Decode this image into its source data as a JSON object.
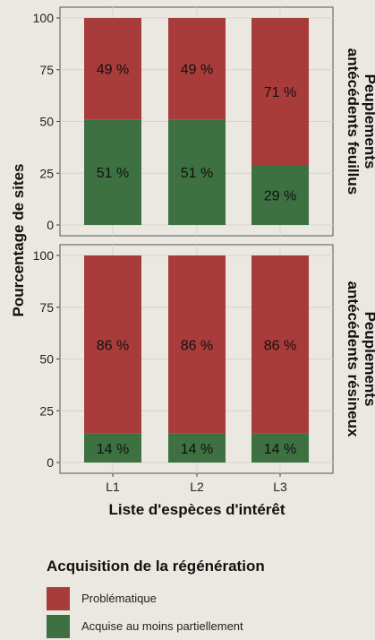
{
  "chart_data": {
    "type": "bar",
    "stacked": true,
    "orientation": "vertical",
    "categories": [
      "L1",
      "L2",
      "L3"
    ],
    "xlabel": "Liste d'espèces d'intérêt",
    "ylabel": "Pourcentage de sites",
    "ylim": [
      0,
      100
    ],
    "yticks": [
      0,
      25,
      50,
      75,
      100
    ],
    "grid": true,
    "legend_placement": "bottom",
    "value_label_suffix": " %",
    "facets": [
      {
        "label": "Peuplements antécédents feuillus",
        "label_lines": [
          "Peuplements",
          "antécédents feuillus"
        ],
        "series": [
          {
            "name": "Acquise au moins partiellement",
            "values": [
              51,
              51,
              29
            ]
          },
          {
            "name": "Problématique",
            "values": [
              49,
              49,
              71
            ]
          }
        ]
      },
      {
        "label": "Peuplements antécédents résineux",
        "label_lines": [
          "Peuplements",
          "antécédents résineux"
        ],
        "series": [
          {
            "name": "Acquise au moins partiellement",
            "values": [
              14,
              14,
              14
            ]
          },
          {
            "name": "Problématique",
            "values": [
              86,
              86,
              86
            ]
          }
        ]
      }
    ]
  },
  "legend": {
    "title": "Acquisition de la régénération",
    "items": [
      {
        "label": "Problématique",
        "color": "#a83c3a"
      },
      {
        "label": "Acquise au moins partiellement",
        "color": "#3d7142"
      }
    ]
  },
  "colors": {
    "problematique": "#a83c3a",
    "acquise": "#3d7142",
    "panel_bg": "#ebe8e1",
    "grid": "#d6d3cc"
  }
}
